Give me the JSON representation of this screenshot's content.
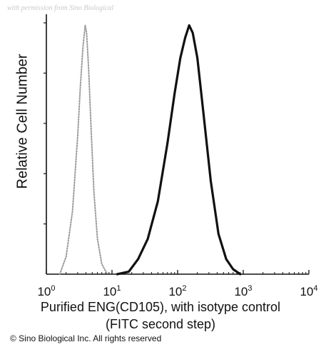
{
  "watermark": "with permission from Sino Biological",
  "copyright": "© Sino Biological Inc. All rights reserved",
  "chart_data": {
    "type": "line",
    "title": "",
    "xlabel": "Purified ENG(CD105), with isotype control",
    "xlabel_line2": "(FITC second step)",
    "ylabel": "Relative Cell Number",
    "xscale": "log",
    "xlim": [
      1,
      10000
    ],
    "ylim": [
      0,
      1
    ],
    "x_ticks": [
      {
        "base": "10",
        "exp": "0"
      },
      {
        "base": "10",
        "exp": "1"
      },
      {
        "base": "10",
        "exp": "2"
      },
      {
        "base": "10",
        "exp": "3"
      },
      {
        "base": "10",
        "exp": "4"
      }
    ],
    "y_tick_labels": "none",
    "legend": "none",
    "grid": false,
    "series": [
      {
        "style": "dotted-gray",
        "color": "#9a9a9a",
        "x": [
          1.6,
          2.0,
          2.5,
          3.0,
          3.3,
          3.6,
          3.9,
          4.1,
          4.4,
          4.8,
          5.3,
          6.0,
          7.0,
          8.5
        ],
        "y": [
          0.0,
          0.07,
          0.25,
          0.55,
          0.75,
          0.9,
          0.99,
          0.96,
          0.82,
          0.58,
          0.33,
          0.14,
          0.04,
          0.0
        ]
      },
      {
        "style": "solid-black",
        "color": "#111111",
        "x": [
          12,
          18,
          25,
          35,
          50,
          70,
          90,
          110,
          130,
          150,
          170,
          200,
          250,
          320,
          420,
          550,
          700,
          900
        ],
        "y": [
          0.0,
          0.01,
          0.06,
          0.14,
          0.29,
          0.52,
          0.72,
          0.86,
          0.94,
          0.99,
          0.96,
          0.86,
          0.63,
          0.37,
          0.16,
          0.06,
          0.02,
          0.0
        ]
      }
    ]
  }
}
